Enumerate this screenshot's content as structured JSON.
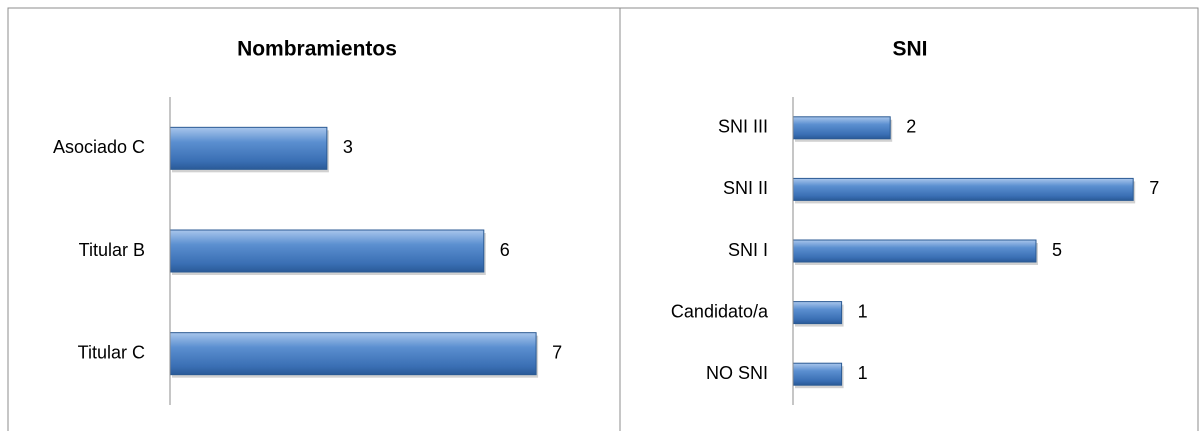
{
  "chart_data": [
    {
      "type": "bar",
      "orientation": "horizontal",
      "title": "Nombramientos",
      "categories": [
        "Asociado C",
        "Titular B",
        "Titular C"
      ],
      "values": [
        3,
        6,
        7
      ],
      "color": "#4f81bd"
    },
    {
      "type": "bar",
      "orientation": "horizontal",
      "title": "SNI",
      "categories": [
        "SNI III",
        "SNI II",
        "SNI I",
        "Candidato/a",
        "NO SNI"
      ],
      "values": [
        2,
        7,
        5,
        1,
        1
      ],
      "color": "#4f81bd"
    }
  ]
}
